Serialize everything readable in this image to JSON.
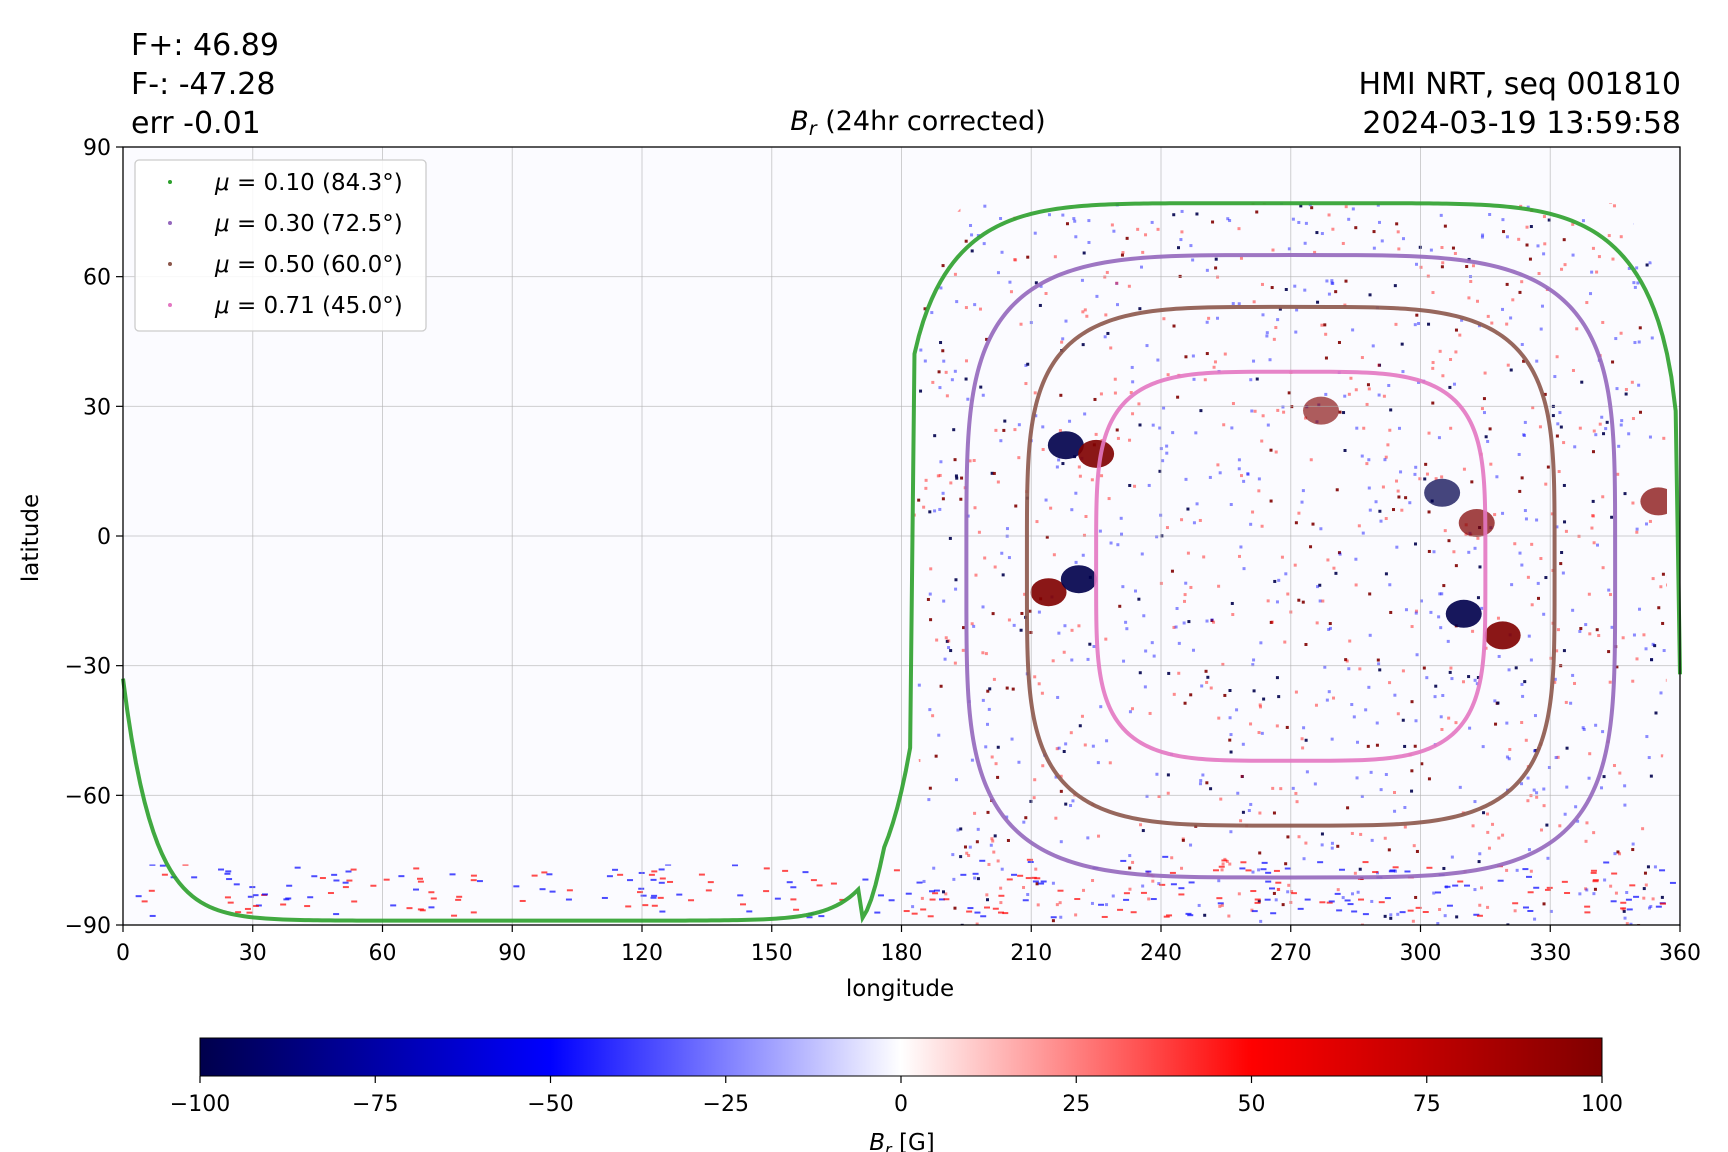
{
  "header": {
    "flux_pos": "F+: 46.89",
    "flux_neg": "F-: -47.28",
    "error": "err -0.01",
    "source": "HMI NRT, seq 001810",
    "timestamp": "2024-03-19 13:59:58"
  },
  "chart_data": {
    "type": "heatmap",
    "title": "B_r (24hr corrected)",
    "xlabel": "longitude",
    "ylabel": "latitude",
    "xlim": [
      0,
      360
    ],
    "ylim": [
      -90,
      90
    ],
    "xticks": [
      0,
      30,
      60,
      90,
      120,
      150,
      180,
      210,
      240,
      270,
      300,
      330,
      360
    ],
    "yticks": [
      -90,
      -60,
      -30,
      0,
      30,
      60,
      90
    ],
    "grid": true,
    "legend_position": "upper-left",
    "series": [
      {
        "name": "μ = 0.10 (84.3°)",
        "color": "#2ca02c",
        "center": [
          270,
          -1
        ],
        "half_width": [
          87,
          88
        ],
        "lon_range": [
          0,
          360
        ],
        "lat_range": [
          -89,
          77
        ]
      },
      {
        "name": "μ = 0.30 (72.5°)",
        "color": "#9467bd",
        "center": [
          270,
          -7
        ],
        "half_width": [
          75,
          72
        ],
        "lon_range": [
          195,
          345
        ],
        "lat_range": [
          -79,
          65
        ]
      },
      {
        "name": "μ = 0.50 (60.0°)",
        "color": "#8c564b",
        "center": [
          270,
          -7
        ],
        "half_width": [
          61,
          60
        ],
        "lon_range": [
          209,
          331
        ],
        "lat_range": [
          -67,
          53
        ]
      },
      {
        "name": "μ = 0.71 (45.0°)",
        "color": "#e377c2",
        "center": [
          270,
          -7
        ],
        "half_width": [
          45,
          45
        ],
        "lon_range": [
          228,
          315
        ],
        "lat_range": [
          -52,
          38
        ]
      }
    ],
    "active_regions": [
      {
        "lon": 218,
        "lat": 21,
        "polarity": "negative",
        "strength": 100
      },
      {
        "lon": 225,
        "lat": 19,
        "polarity": "positive",
        "strength": 100
      },
      {
        "lon": 214,
        "lat": -13,
        "polarity": "positive",
        "strength": 100
      },
      {
        "lon": 221,
        "lat": -10,
        "polarity": "negative",
        "strength": 100
      },
      {
        "lon": 310,
        "lat": -18,
        "polarity": "negative",
        "strength": 100
      },
      {
        "lon": 319,
        "lat": -23,
        "polarity": "positive",
        "strength": 100
      },
      {
        "lon": 305,
        "lat": 10,
        "polarity": "negative",
        "strength": 80
      },
      {
        "lon": 313,
        "lat": 3,
        "polarity": "positive",
        "strength": 80
      },
      {
        "lon": 277,
        "lat": 29,
        "polarity": "positive",
        "strength": 70
      },
      {
        "lon": 355,
        "lat": 8,
        "polarity": "positive",
        "strength": 80
      }
    ],
    "colorbar": {
      "label": "B_r [G]",
      "min": -100,
      "max": 100,
      "ticks": [
        -100,
        -75,
        -50,
        -25,
        0,
        25,
        50,
        75,
        100
      ],
      "colormap": "seismic",
      "colors": [
        "#00004c",
        "#0000ff",
        "#ffffff",
        "#ff0000",
        "#800000"
      ]
    }
  }
}
